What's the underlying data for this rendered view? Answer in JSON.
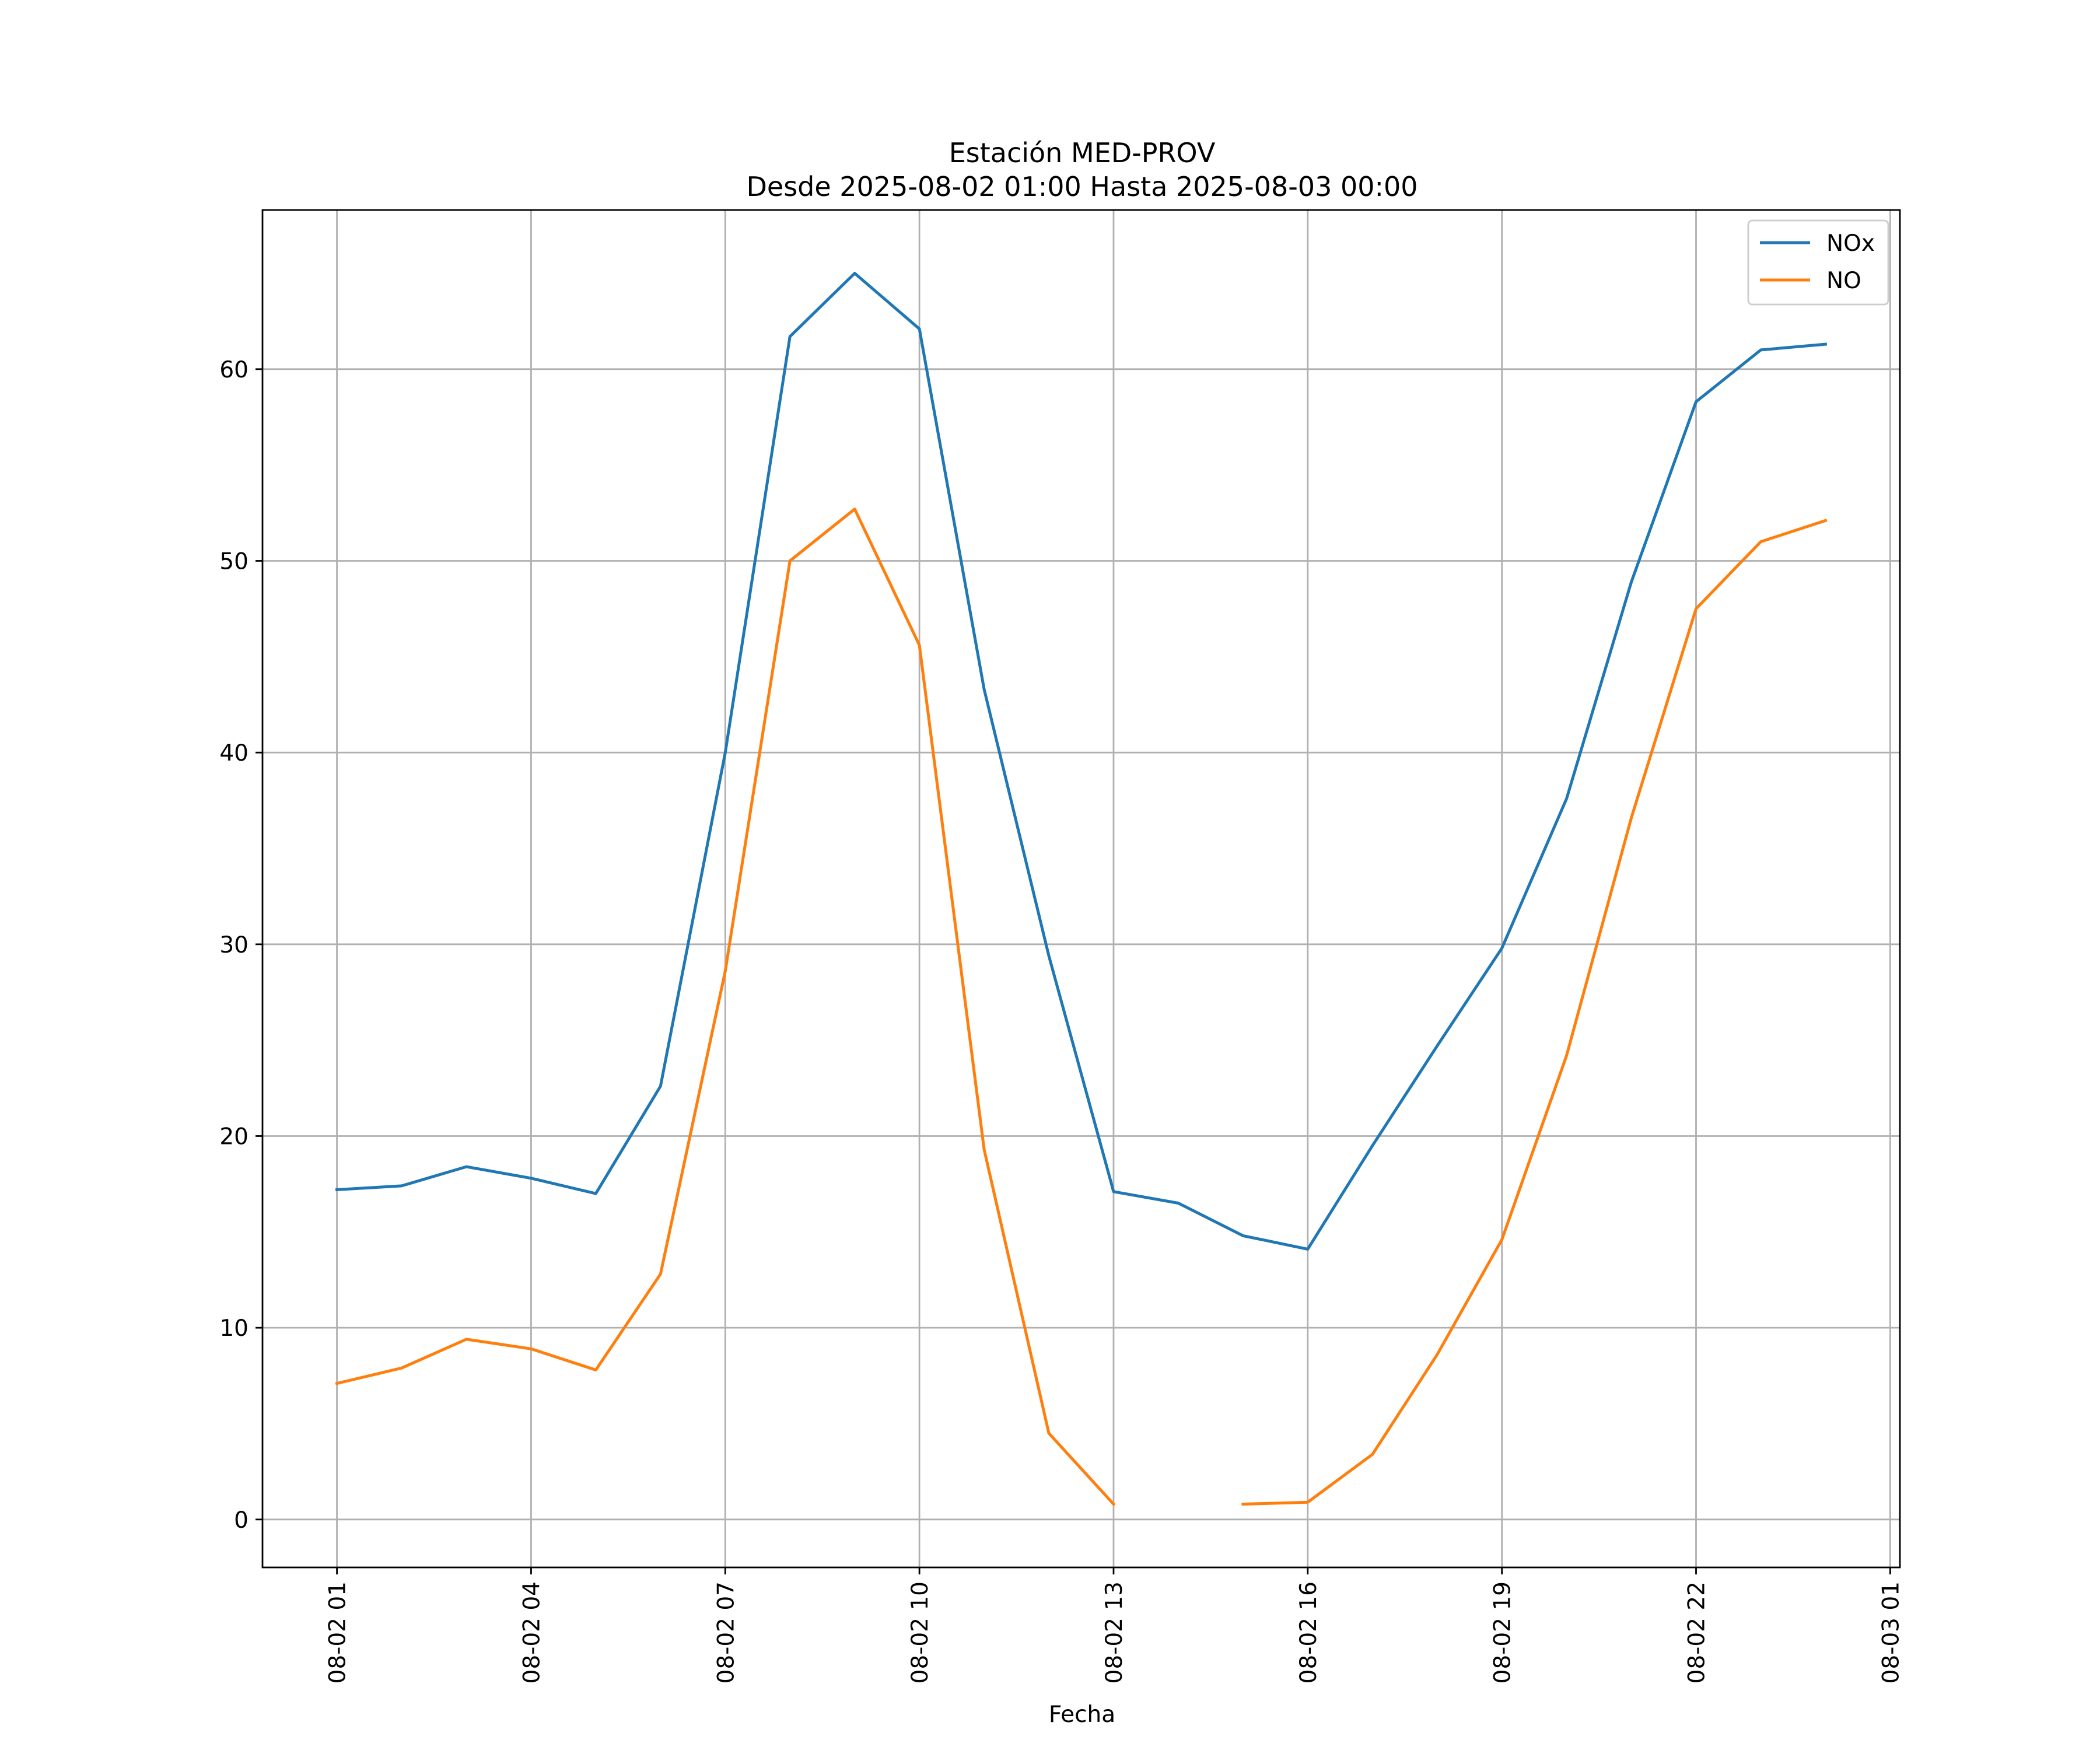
{
  "chart_data": {
    "type": "line",
    "title": "Estación MED-PROV",
    "subtitle": "Desde 2025-08-02 01:00 Hasta 2025-08-03 00:00",
    "xlabel": "Fecha",
    "ylabel": "",
    "x": [
      "2025-08-02 01:00",
      "2025-08-02 02:00",
      "2025-08-02 03:00",
      "2025-08-02 04:00",
      "2025-08-02 05:00",
      "2025-08-02 06:00",
      "2025-08-02 07:00",
      "2025-08-02 08:00",
      "2025-08-02 09:00",
      "2025-08-02 10:00",
      "2025-08-02 11:00",
      "2025-08-02 12:00",
      "2025-08-02 13:00",
      "2025-08-02 14:00",
      "2025-08-02 15:00",
      "2025-08-02 16:00",
      "2025-08-02 17:00",
      "2025-08-02 18:00",
      "2025-08-02 19:00",
      "2025-08-02 20:00",
      "2025-08-02 21:00",
      "2025-08-02 22:00",
      "2025-08-02 23:00",
      "2025-08-03 00:00"
    ],
    "x_ticks": [
      "08-02 01",
      "08-02 04",
      "08-02 07",
      "08-02 10",
      "08-02 13",
      "08-02 16",
      "08-02 19",
      "08-02 22",
      "08-03 01"
    ],
    "x_tick_dates": [
      "2025-08-02 01:00",
      "2025-08-02 04:00",
      "2025-08-02 07:00",
      "2025-08-02 10:00",
      "2025-08-02 13:00",
      "2025-08-02 16:00",
      "2025-08-02 19:00",
      "2025-08-02 22:00",
      "2025-08-03 01:00"
    ],
    "xlim": [
      "2025-08-01 23:51",
      "2025-08-03 01:09"
    ],
    "y_ticks": [
      0,
      10,
      20,
      30,
      40,
      50,
      60
    ],
    "ylim": [
      -2.5,
      68.3
    ],
    "grid": true,
    "legend_position": "top-right",
    "series": [
      {
        "name": "NOx",
        "color": "#1f77b4",
        "values": [
          17.2,
          17.4,
          18.4,
          17.8,
          17.0,
          22.6,
          40.0,
          61.7,
          65.0,
          62.1,
          43.3,
          29.4,
          17.1,
          16.5,
          14.8,
          14.1,
          19.5,
          24.7,
          29.8,
          37.6,
          48.9,
          58.3,
          61.0,
          61.3
        ]
      },
      {
        "name": "NO",
        "color": "#ff7f0e",
        "values": [
          7.1,
          7.9,
          9.4,
          8.9,
          7.8,
          12.8,
          28.6,
          50.0,
          52.7,
          45.6,
          19.3,
          4.5,
          0.8,
          null,
          0.8,
          0.9,
          3.4,
          8.6,
          14.6,
          24.2,
          36.6,
          47.5,
          51.0,
          52.1
        ]
      }
    ]
  }
}
